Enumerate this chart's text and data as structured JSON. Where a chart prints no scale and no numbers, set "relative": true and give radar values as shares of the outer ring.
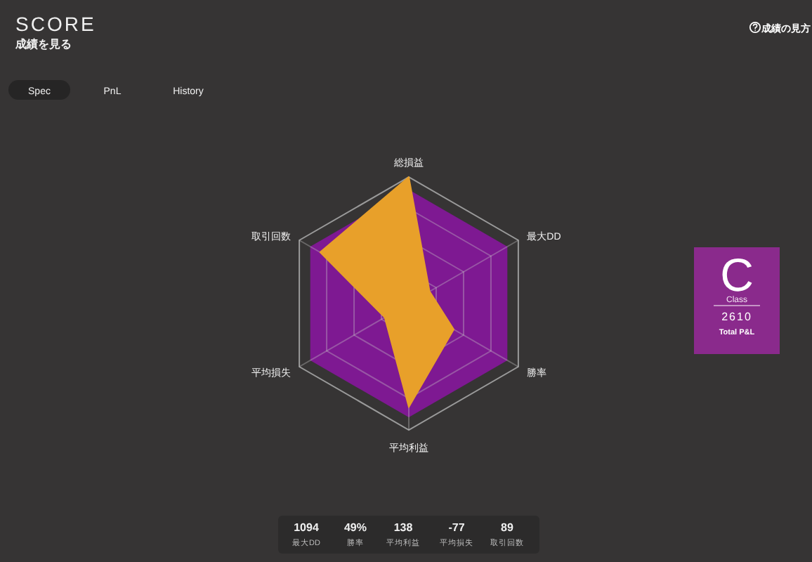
{
  "chart_data": {
    "type": "radar",
    "title": "SCORE",
    "subtitle": "成績を見る",
    "relative": true,
    "grid": true,
    "legend": false,
    "categories": [
      "総損益",
      "最大DD",
      "勝率",
      "平均利益",
      "平均損失",
      "取引回数"
    ],
    "series": [
      {
        "color": "#e8a02a",
        "values": [
          1.0,
          0.19,
          0.41,
          0.82,
          0.22,
          0.81
        ]
      }
    ],
    "annotations": [
      "成績の見方",
      "Spec",
      "PnL",
      "History",
      "C",
      "Class",
      "2610",
      "Total P&L",
      "1094",
      "最大DD",
      "49%",
      "勝率",
      "138",
      "平均利益",
      "-77",
      "平均損失",
      "89",
      "取引回数"
    ]
  }
}
